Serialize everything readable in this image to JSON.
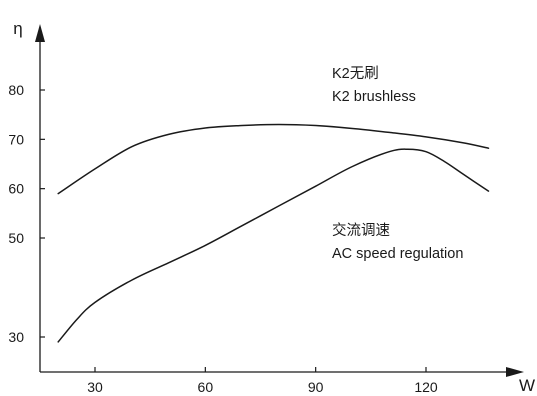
{
  "chart_data": {
    "type": "line",
    "xlabel": "W",
    "ylabel": "η",
    "x_ticks": [
      30,
      60,
      90,
      120
    ],
    "y_ticks": [
      30,
      50,
      60,
      70,
      80
    ],
    "xlim": [
      17,
      138
    ],
    "grid": false,
    "series": [
      {
        "name": "K2无刷 K2 brushless",
        "x": [
          20,
          30,
          40,
          50,
          60,
          70,
          80,
          90,
          100,
          110,
          120,
          130,
          137
        ],
        "y": [
          59,
          64,
          68.5,
          71,
          72.3,
          72.8,
          73,
          72.8,
          72.2,
          71.4,
          70.5,
          69.3,
          68.2
        ]
      },
      {
        "name": "交流调速 AC speed regulation",
        "x": [
          20,
          25,
          30,
          40,
          50,
          60,
          70,
          80,
          90,
          100,
          110,
          115,
          120,
          125,
          130,
          137
        ],
        "y": [
          29,
          33.5,
          37,
          41.5,
          45,
          48.5,
          52.5,
          56.5,
          60.5,
          64.5,
          67.5,
          68.0,
          67.5,
          65.5,
          63,
          59.5
        ]
      }
    ],
    "annotations": [
      {
        "line1": "K2无刷",
        "line2": "K2 brushless"
      },
      {
        "line1": "交流调速",
        "line2": "AC speed regulation"
      }
    ],
    "colors": {
      "line": "#1a1a1a",
      "background": "#ffffff"
    }
  }
}
